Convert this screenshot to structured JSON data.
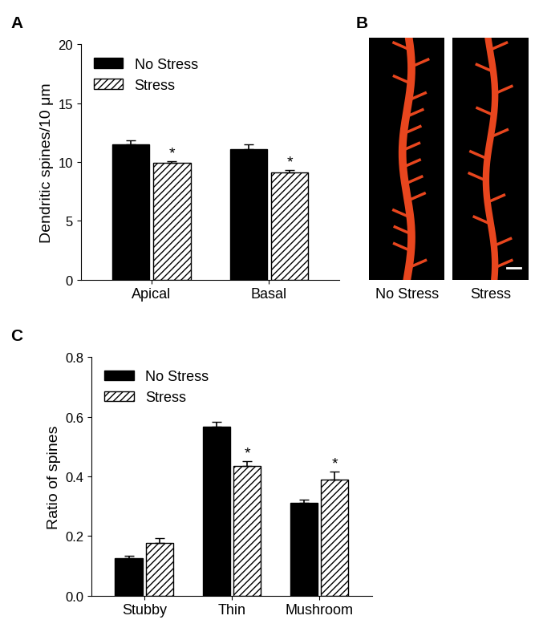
{
  "chart_data": [
    {
      "type": "bar",
      "panel_label": "A",
      "y_label": "Dendritic spines/10 μm",
      "categories": [
        "Apical",
        "Basal"
      ],
      "series": [
        {
          "name": "No Stress",
          "color": "#000000",
          "values": [
            11.5,
            11.1
          ],
          "error": [
            0.35,
            0.4
          ],
          "significance": [
            null,
            null
          ]
        },
        {
          "name": "Stress",
          "color": "#ffffff",
          "values": [
            9.9,
            9.1
          ],
          "error": [
            0.2,
            0.25
          ],
          "significance": [
            "*",
            "*"
          ]
        }
      ],
      "ylim": [
        0,
        20
      ],
      "yticks": [
        0,
        5,
        10,
        15,
        20
      ],
      "legend": "upper left"
    },
    {
      "type": "image",
      "panel_label": "B",
      "captions": [
        "No Stress",
        "Stress"
      ]
    },
    {
      "type": "bar",
      "panel_label": "C",
      "y_label": "Ratio of spines",
      "categories": [
        "Stubby",
        "Thin",
        "Mushroom"
      ],
      "series": [
        {
          "name": "No Stress",
          "color": "#000000",
          "values": [
            0.125,
            0.567,
            0.31
          ],
          "error": [
            0.01,
            0.017,
            0.012
          ],
          "significance": [
            null,
            null,
            null
          ]
        },
        {
          "name": "Stress",
          "color": "#ffffff",
          "values": [
            0.178,
            0.435,
            0.39
          ],
          "error": [
            0.015,
            0.015,
            0.025
          ],
          "significance": [
            null,
            "*",
            "*"
          ]
        }
      ],
      "ylim": [
        0,
        0.8
      ],
      "yticks": [
        0.0,
        0.2,
        0.4,
        0.6,
        0.8
      ],
      "legend": "upper left"
    }
  ]
}
